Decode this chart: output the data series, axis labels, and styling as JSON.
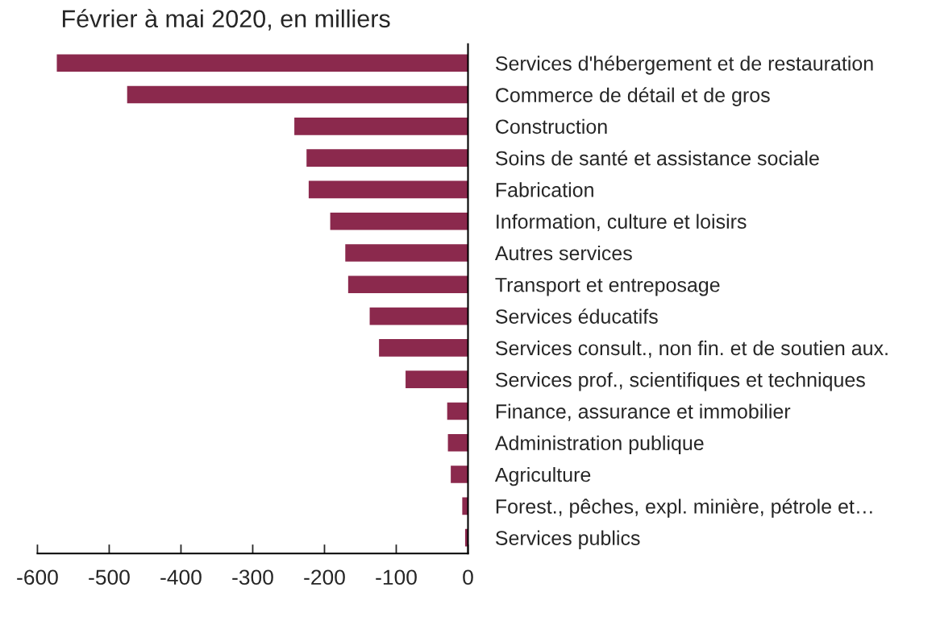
{
  "chart_data": {
    "type": "bar",
    "orientation": "horizontal",
    "title": "Février à mai 2020, en milliers",
    "categories": [
      "Services d'hébergement et de restauration",
      "Commerce de détail et de gros",
      "Construction",
      "Soins de santé et assistance sociale",
      "Fabrication",
      "Information, culture et loisirs",
      "Autres services",
      "Transport et entreposage",
      "Services éducatifs",
      "Services consult., non fin. et de soutien aux.",
      "Services prof., scientifiques et techniques",
      "Finance, assurance et immobilier",
      "Administration publique",
      "Agriculture",
      "Forest., pêches, expl. minière, pétrole et…",
      "Services publics"
    ],
    "values": [
      -573,
      -475,
      -242,
      -225,
      -222,
      -192,
      -171,
      -167,
      -137,
      -124,
      -87,
      -29,
      -28,
      -24,
      -8,
      -4
    ],
    "color": "#8b294d",
    "xlim": [
      -600,
      0
    ],
    "xticks": [
      -600,
      -500,
      -400,
      -300,
      -200,
      -100,
      0
    ],
    "grid": false,
    "legend": false
  }
}
